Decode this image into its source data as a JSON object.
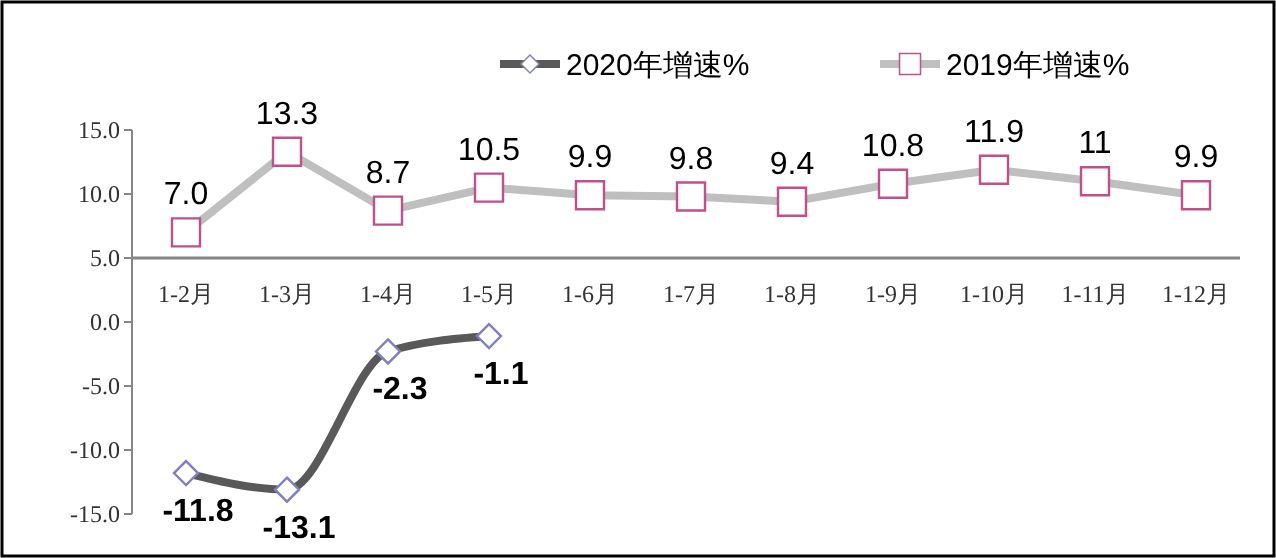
{
  "chart_data": {
    "type": "line",
    "categories": [
      "1-2月",
      "1-3月",
      "1-4月",
      "1-5月",
      "1-6月",
      "1-7月",
      "1-8月",
      "1-9月",
      "1-10月",
      "1-11月",
      "1-12月"
    ],
    "series": [
      {
        "name": "2020年增速%",
        "color": "#595959",
        "marker": "diamond",
        "values": [
          -11.8,
          -13.1,
          -2.3,
          -1.1,
          null,
          null,
          null,
          null,
          null,
          null,
          null
        ],
        "value_labels": [
          "-11.8",
          "-13.1",
          "-2.3",
          "-1.1",
          null,
          null,
          null,
          null,
          null,
          null,
          null
        ]
      },
      {
        "name": "2019年增速%",
        "color": "#bfbfbf",
        "marker": "square",
        "values": [
          7.0,
          13.3,
          8.7,
          10.5,
          9.9,
          9.8,
          9.4,
          10.8,
          11.9,
          11,
          9.9
        ],
        "value_labels": [
          "7.0",
          "13.3",
          "8.7",
          "10.5",
          "9.9",
          "9.8",
          "9.4",
          "10.8",
          "11.9",
          "11",
          "9.9"
        ]
      }
    ],
    "ylim": [
      -15,
      15
    ],
    "yticks": [
      {
        "value": -15,
        "label": "-15.0"
      },
      {
        "value": -10,
        "label": "-10.0"
      },
      {
        "value": -5,
        "label": "-5.0"
      },
      {
        "value": 0,
        "label": "0.0"
      },
      {
        "value": 5,
        "label": "5.0"
      },
      {
        "value": 10,
        "label": "10.0"
      },
      {
        "value": 15,
        "label": "15.0"
      }
    ],
    "legend": "top",
    "grid": false
  }
}
